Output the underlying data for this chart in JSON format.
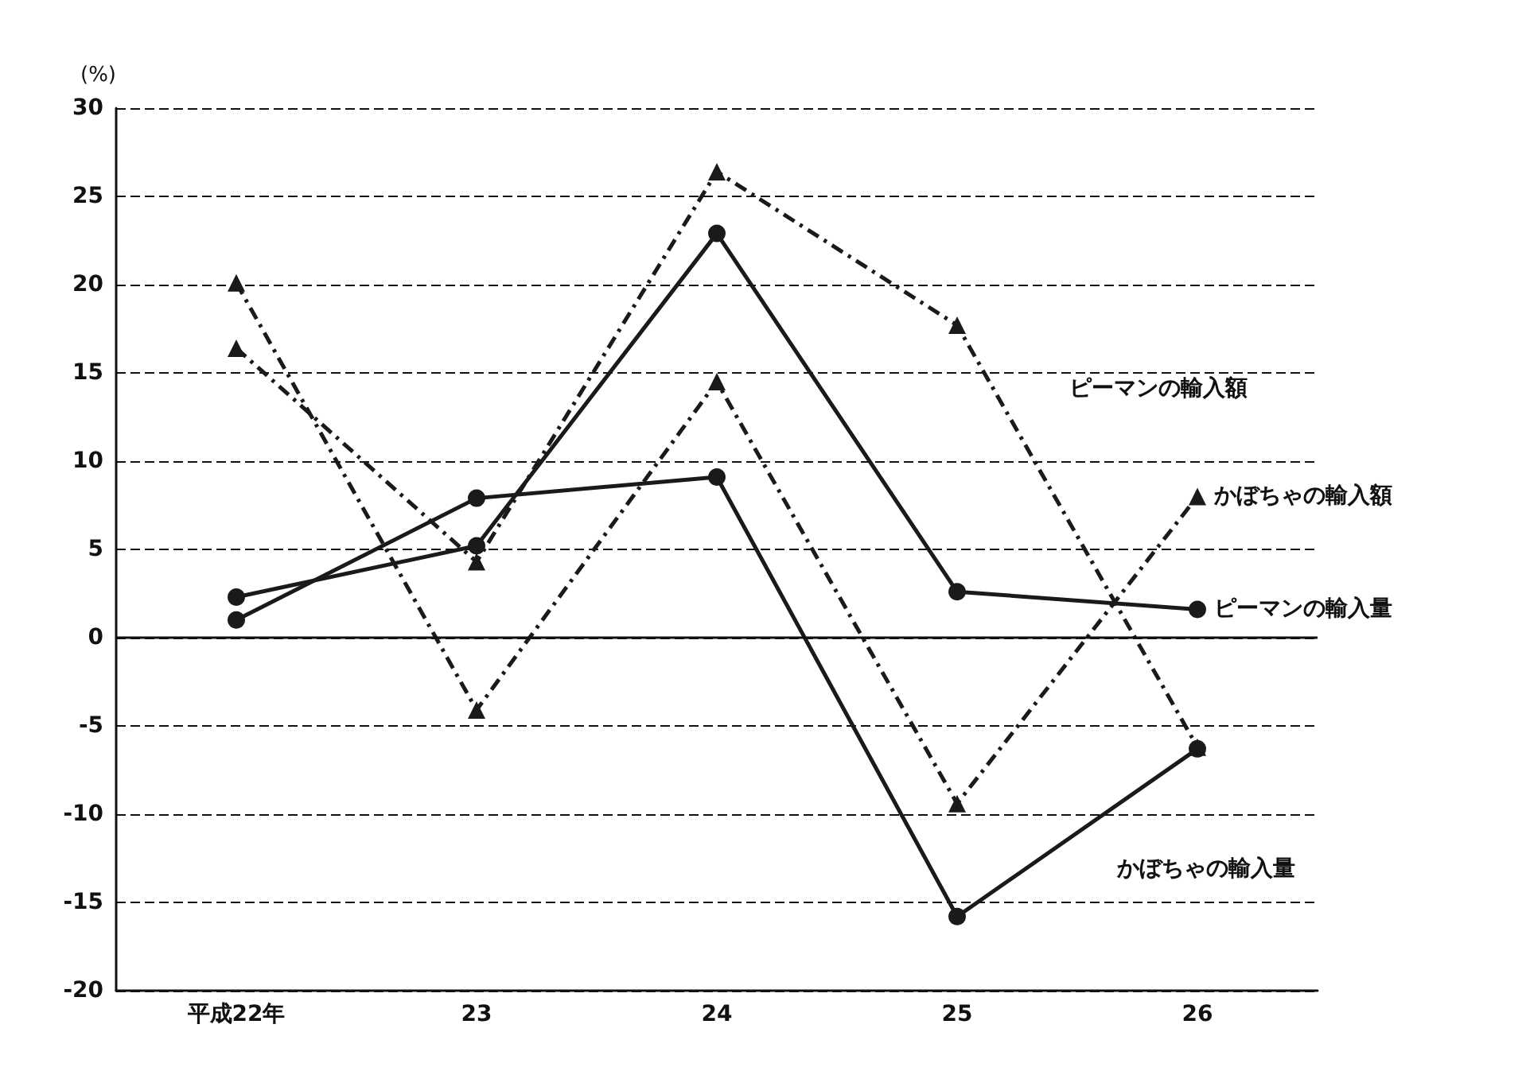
{
  "chart_data": {
    "type": "line",
    "ylabel": "(%)",
    "categories": [
      "平成22年",
      "23",
      "24",
      "25",
      "26"
    ],
    "series": [
      {
        "name": "ピーマンの輸入額",
        "color": "#1a1a1a",
        "marker": "triangle",
        "line_style": "dashed",
        "values": [
          16.4,
          4.3,
          26.4,
          17.7,
          -6.2
        ]
      },
      {
        "name": "かぼちゃの輸入額",
        "color": "#1a1a1a",
        "marker": "triangle",
        "line_style": "dashed",
        "values": [
          20.1,
          -4.1,
          14.5,
          -9.4,
          8.0
        ]
      },
      {
        "name": "ピーマンの輸入量",
        "color": "#1a1a1a",
        "marker": "circle",
        "line_style": "solid",
        "values": [
          2.3,
          5.2,
          22.9,
          2.6,
          1.6
        ]
      },
      {
        "name": "かぼちゃの輸入量",
        "color": "#1a1a1a",
        "marker": "circle",
        "line_style": "solid",
        "values": [
          1.0,
          7.9,
          9.1,
          -15.8,
          -6.3
        ]
      }
    ],
    "ylim": [
      -20,
      30
    ],
    "yticks": [
      -20,
      -15,
      -10,
      -5,
      0,
      5,
      10,
      15,
      20,
      25,
      30
    ],
    "grid": "y",
    "legend": false,
    "ref_lines": [
      {
        "axis": "y",
        "value": 0,
        "line_style": "solid"
      }
    ]
  }
}
